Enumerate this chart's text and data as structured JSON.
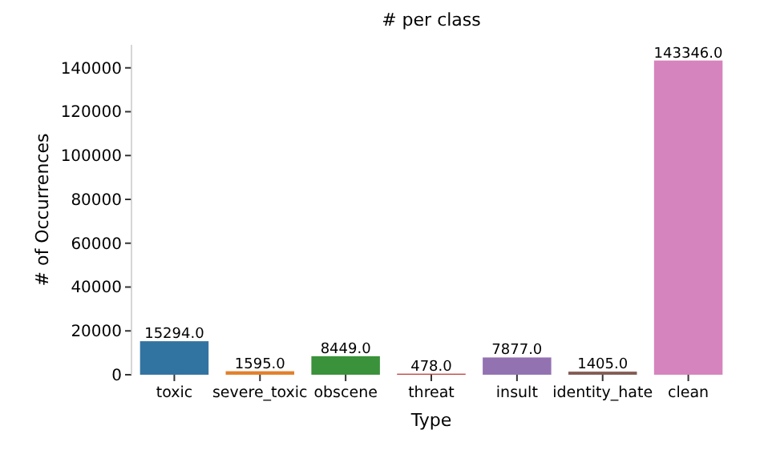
{
  "chart_data": {
    "type": "bar",
    "title": "# per class",
    "xlabel": "Type",
    "ylabel": "# of Occurrences",
    "categories": [
      "toxic",
      "severe_toxic",
      "obscene",
      "threat",
      "insult",
      "identity_hate",
      "clean"
    ],
    "values": [
      15294,
      1595,
      8449,
      478,
      7877,
      1405,
      143346
    ],
    "value_labels": [
      "15294.0",
      "1595.0",
      "8449.0",
      "478.0",
      "7877.0",
      "1405.0",
      "143346.0"
    ],
    "colors": [
      "#3274a1",
      "#e1812c",
      "#3a923a",
      "#c03d3e",
      "#9372b2",
      "#845b53",
      "#d684bd"
    ],
    "ylim": [
      0,
      150500
    ],
    "yticks": [
      0,
      20000,
      40000,
      60000,
      80000,
      100000,
      120000,
      140000
    ]
  }
}
